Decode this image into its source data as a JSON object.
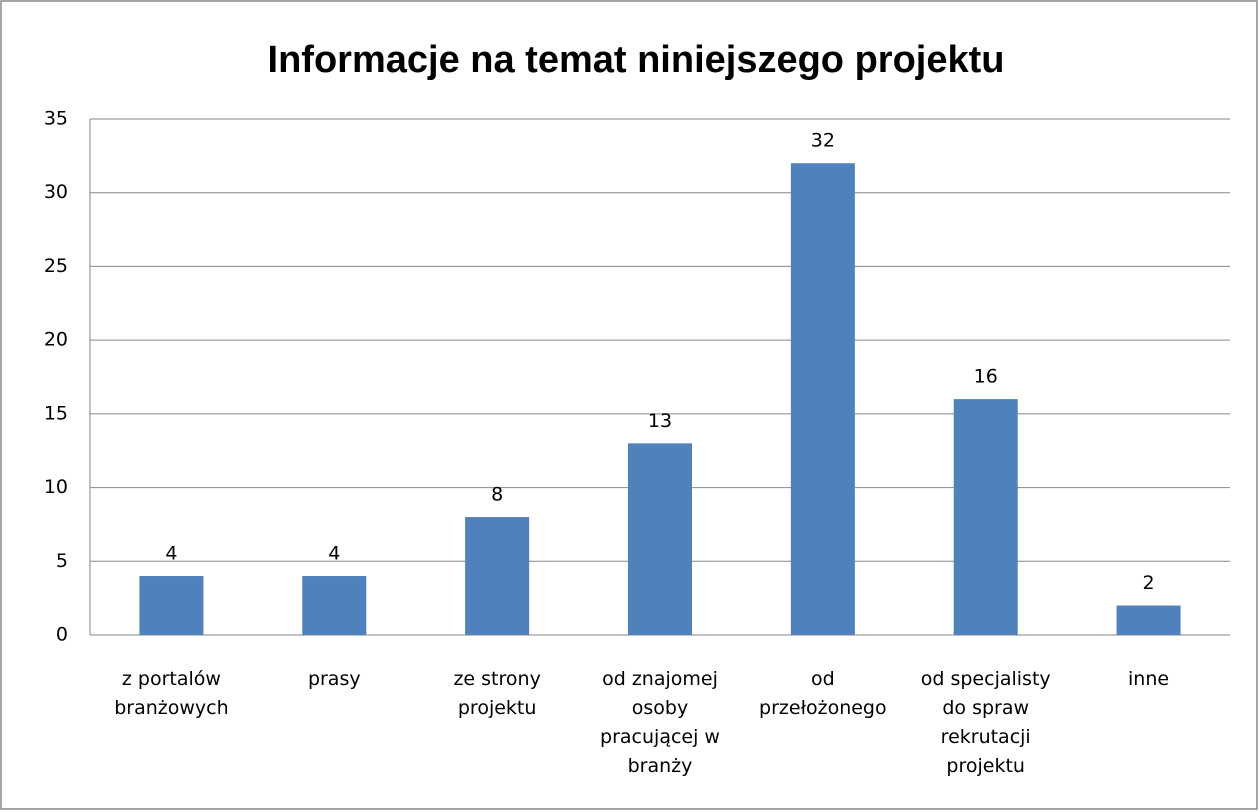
{
  "chart_data": {
    "type": "bar",
    "title": "Informacje na temat niniejszego projektu",
    "categories": [
      "z portalów branżowych",
      "prasy",
      "ze strony projektu",
      "od znajomej osoby pracującej w branży",
      "od przełożonego",
      "od specjalisty do spraw rekrutacji projektu",
      "inne"
    ],
    "values": [
      4,
      4,
      8,
      13,
      32,
      16,
      2
    ],
    "color": "#4f81bd",
    "ylim": [
      0,
      35
    ],
    "yticks": [
      0,
      5,
      10,
      15,
      20,
      25,
      30,
      35
    ],
    "grid": true
  }
}
